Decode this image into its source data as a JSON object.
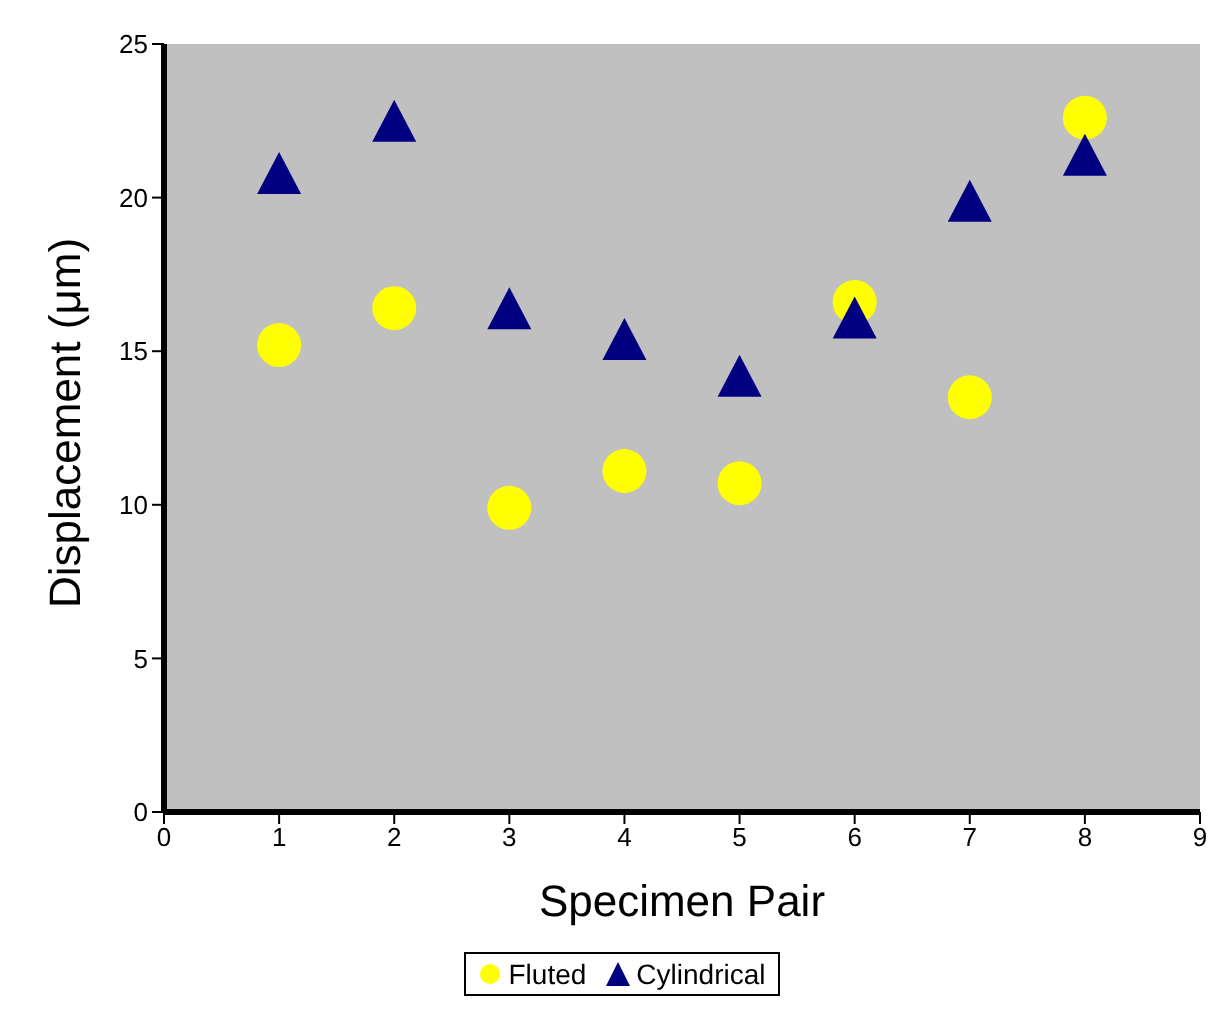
{
  "chart_data": {
    "type": "scatter",
    "xlabel": "Specimen Pair",
    "ylabel": "Displacement (μm)",
    "xlim": [
      0,
      9
    ],
    "xticks": [
      0,
      1,
      2,
      3,
      4,
      5,
      6,
      7,
      8,
      9
    ],
    "ylim": [
      0,
      25
    ],
    "yticks": [
      0,
      5,
      10,
      15,
      20,
      25
    ],
    "grid": false,
    "legend": "bottom",
    "x": [
      1,
      2,
      3,
      4,
      5,
      6,
      7,
      8
    ],
    "series": [
      {
        "name": "Fluted",
        "color": "#ffff00",
        "marker": "circle",
        "values": [
          15.2,
          16.4,
          9.9,
          11.1,
          10.7,
          16.6,
          13.5,
          22.6
        ]
      },
      {
        "name": "Cylindrical",
        "color": "#000080",
        "marker": "triangle",
        "values": [
          20.7,
          22.4,
          16.3,
          15.3,
          14.1,
          16.0,
          19.8,
          21.3
        ]
      }
    ]
  }
}
